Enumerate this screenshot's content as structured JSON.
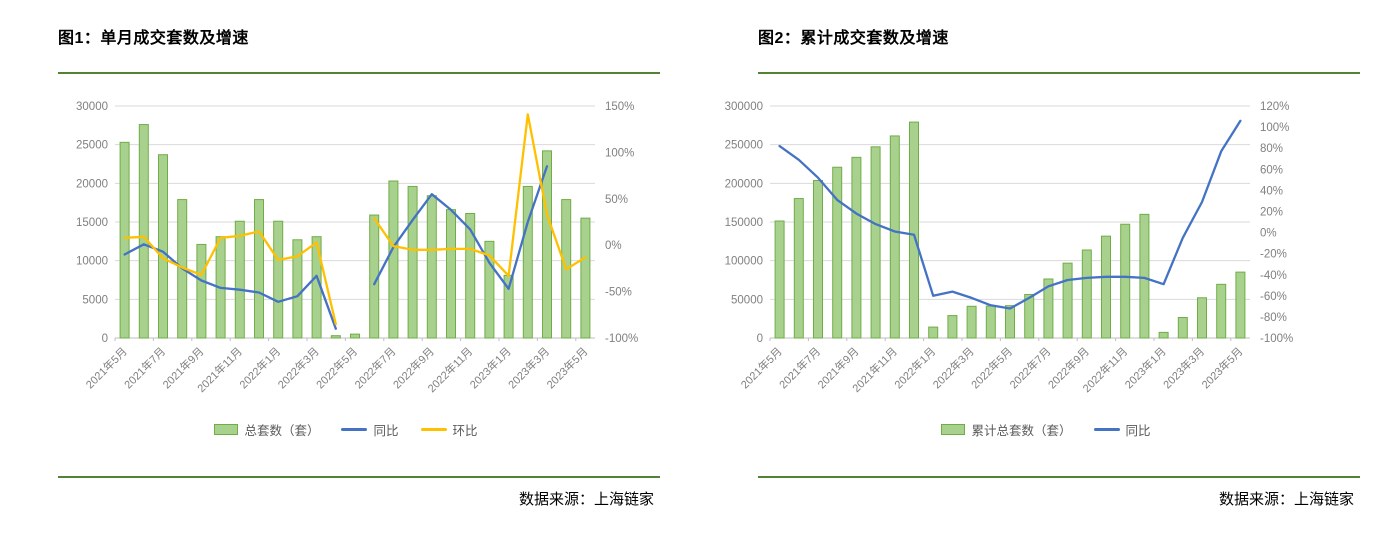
{
  "colors": {
    "bar_fill": "#A9D18E",
    "bar_border": "#70AD47",
    "yoy_line": "#4472C4",
    "mom_line": "#FFC000",
    "separator_green": "#538135",
    "gridline": "#D9D9D9",
    "axis_line": "#BFBFBF",
    "axis_text": "#808080",
    "legend_text": "#595959",
    "title_text": "#000000",
    "source_text": "#000000"
  },
  "panels": [
    {
      "title": "图1：单月成交套数及增速",
      "source": "数据来源：上海链家",
      "legend": [
        {
          "label": "总套数（套）",
          "swatch": "bar"
        },
        {
          "label": "同比",
          "swatch": "line",
          "color": "#4472C4"
        },
        {
          "label": "环比",
          "swatch": "line",
          "color": "#FFC000"
        }
      ]
    },
    {
      "title": "图2：累计成交套数及增速",
      "source": "数据来源：上海链家",
      "legend": [
        {
          "label": "累计总套数（套）",
          "swatch": "bar"
        },
        {
          "label": "同比",
          "swatch": "line",
          "color": "#4472C4"
        }
      ]
    }
  ],
  "chart_data": [
    {
      "type": "bar+line",
      "title": "图1：单月成交套数及增速",
      "categories": [
        "2021年5月",
        "2021年6月",
        "2021年7月",
        "2021年8月",
        "2021年9月",
        "2021年10月",
        "2021年11月",
        "2021年12月",
        "2022年1月",
        "2022年2月",
        "2022年3月",
        "2022年4月",
        "2022年5月",
        "2022年6月",
        "2022年7月",
        "2022年8月",
        "2022年9月",
        "2022年10月",
        "2022年11月",
        "2022年12月",
        "2023年1月",
        "2023年2月",
        "2023年3月",
        "2023年4月",
        "2023年5月"
      ],
      "x_tick_labels": [
        "2021年5月",
        "2021年7月",
        "2021年9月",
        "2021年11月",
        "2022年1月",
        "2022年3月",
        "2022年5月",
        "2022年7月",
        "2022年9月",
        "2022年11月",
        "2023年1月",
        "2023年3月",
        "2023年5月"
      ],
      "series": [
        {
          "name": "总套数（套）",
          "type": "bar",
          "axis": "left",
          "values": [
            25300,
            27600,
            23700,
            17900,
            12100,
            13100,
            15100,
            17900,
            15100,
            12700,
            13100,
            300,
            500,
            15900,
            20300,
            19600,
            18400,
            16600,
            16100,
            12500,
            8100,
            19600,
            24200,
            17900,
            15500
          ]
        },
        {
          "name": "同比",
          "type": "line",
          "axis": "right",
          "values": [
            -10,
            1,
            -7,
            -25,
            -38,
            -46,
            -48,
            -51,
            -61,
            -55,
            -33,
            -90,
            null,
            -42,
            -2,
            27,
            55,
            38,
            17,
            -19,
            -47,
            25,
            85,
            null,
            null
          ]
        },
        {
          "name": "环比",
          "type": "line",
          "axis": "right",
          "values": [
            8,
            9,
            -14,
            -24,
            -32,
            8,
            10,
            15,
            -16,
            -12,
            3,
            -85,
            null,
            29,
            -1,
            -5,
            -5,
            -4,
            -4,
            -11,
            -33,
            141,
            33,
            -26,
            -13
          ]
        }
      ],
      "left_axis": {
        "min": 0,
        "max": 30000,
        "step": 5000,
        "labels_top_down": [
          "30000",
          "25000",
          "20000",
          "15000",
          "10000",
          "5000",
          "0"
        ]
      },
      "right_axis": {
        "min": -100,
        "max": 150,
        "step": 50,
        "labels_top_down": [
          "150%",
          "100%",
          "50%",
          "0%",
          "-50%",
          "-100%"
        ]
      },
      "grid": true,
      "legend_position": "bottom"
    },
    {
      "type": "bar+line",
      "title": "图2：累计成交套数及增速",
      "categories": [
        "2021年5月",
        "2021年6月",
        "2021年7月",
        "2021年8月",
        "2021年9月",
        "2021年10月",
        "2021年11月",
        "2021年12月",
        "2022年1月",
        "2022年2月",
        "2022年3月",
        "2022年4月",
        "2022年5月",
        "2022年6月",
        "2022年7月",
        "2022年8月",
        "2022年9月",
        "2022年10月",
        "2022年11月",
        "2022年12月",
        "2023年1月",
        "2023年2月",
        "2023年3月",
        "2023年4月",
        "2023年5月"
      ],
      "x_tick_labels": [
        "2021年5月",
        "2021年7月",
        "2021年9月",
        "2021年11月",
        "2022年1月",
        "2022年3月",
        "2022年5月",
        "2022年7月",
        "2022年9月",
        "2022年11月",
        "2023年1月",
        "2023年3月",
        "2023年5月"
      ],
      "series": [
        {
          "name": "累计总套数（套）",
          "type": "bar",
          "axis": "left",
          "values": [
            151300,
            180300,
            203700,
            220800,
            233600,
            247200,
            261300,
            279200,
            14100,
            29000,
            41000,
            41300,
            41800,
            56300,
            76300,
            96800,
            113800,
            131700,
            147100,
            159900,
            7300,
            26500,
            52000,
            69400,
            85200
          ]
        },
        {
          "name": "同比",
          "type": "line",
          "axis": "right",
          "values": [
            82,
            69,
            52,
            31,
            18,
            8,
            1,
            -2,
            -60,
            -56,
            -62,
            -69,
            -72,
            -62,
            -51,
            -45,
            -43,
            -42,
            -42,
            -43,
            -49,
            -5,
            29,
            77,
            106
          ]
        }
      ],
      "left_axis": {
        "min": 0,
        "max": 300000,
        "step": 50000,
        "labels_top_down": [
          "300000",
          "250000",
          "200000",
          "150000",
          "100000",
          "50000",
          "0"
        ]
      },
      "right_axis": {
        "min": -100,
        "max": 120,
        "step": 20,
        "labels_top_down": [
          "120%",
          "100%",
          "80%",
          "60%",
          "40%",
          "20%",
          "0%",
          "-20%",
          "-40%",
          "-60%",
          "-80%",
          "-100%"
        ]
      },
      "grid": true,
      "legend_position": "bottom"
    }
  ]
}
